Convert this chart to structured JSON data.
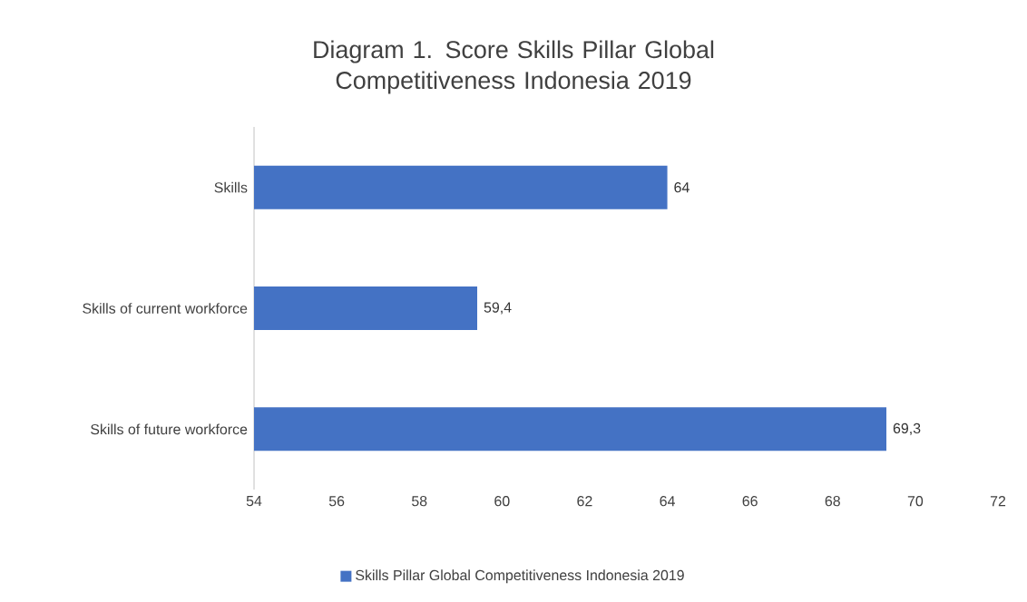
{
  "chart_data": {
    "type": "bar",
    "orientation": "horizontal",
    "title": "Diagram 1. Score Skills Pillar Global Competitiveness Indonesia 2019",
    "categories": [
      "Skills",
      "Skills of current workforce",
      "Skills of future workforce"
    ],
    "series": [
      {
        "name": "Skills Pillar Global Competitiveness Indonesia 2019",
        "color": "#4472c4",
        "values": [
          64,
          59.4,
          69.3
        ],
        "value_labels": [
          "64",
          "59,4",
          "69,3"
        ]
      }
    ],
    "xlim": [
      54,
      72
    ],
    "xticks": [
      54,
      56,
      58,
      60,
      62,
      64,
      66,
      68,
      70,
      72
    ],
    "grid": false,
    "legend": "bottom"
  }
}
